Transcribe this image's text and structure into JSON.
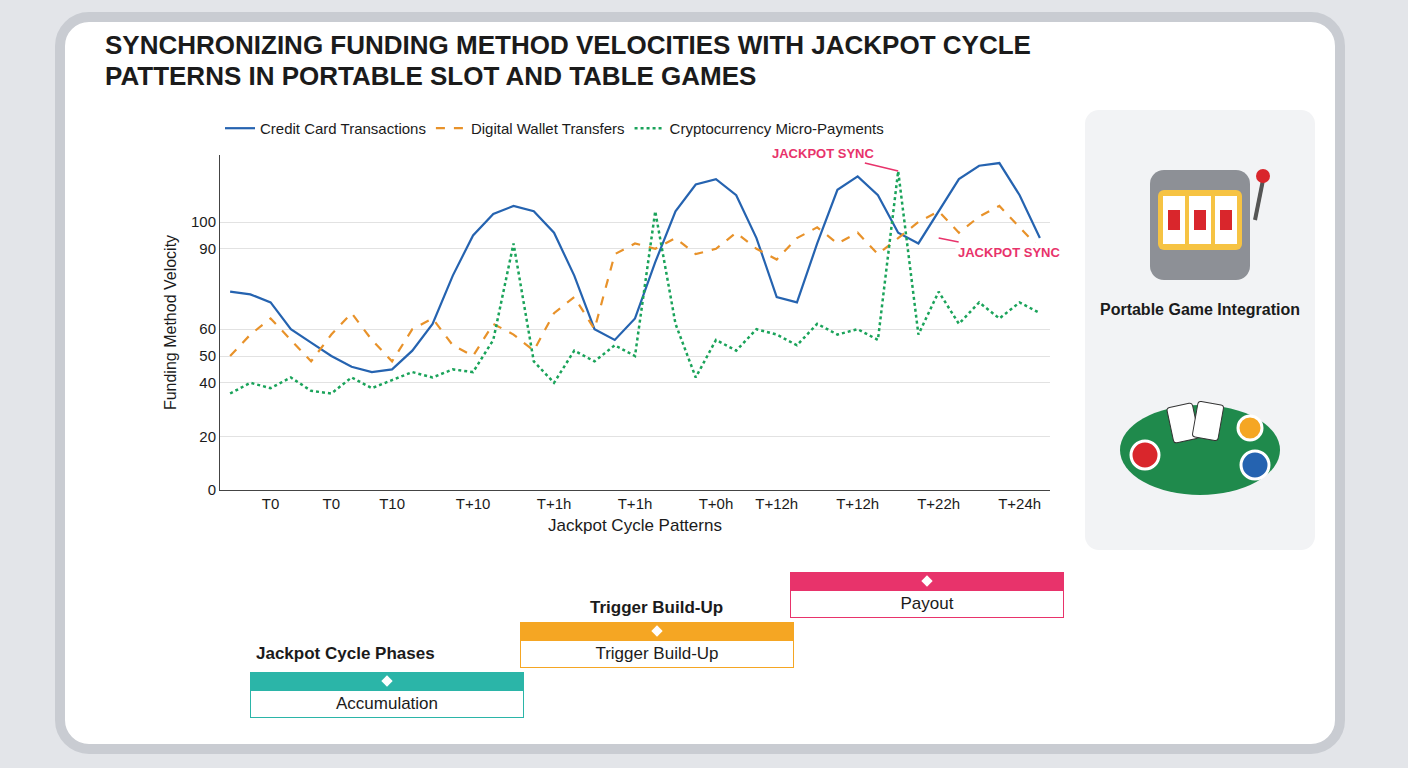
{
  "chart_data": {
    "type": "line",
    "title": "SYNCHRONIZING FUNDING METHOD VELOCITIES WITH JACKPOT CYCLE PATTERNS IN PORTABLE SLOT AND TABLE GAMES",
    "x_label": "Jackpot Cycle Patterns",
    "y_label": "Funding Method Velocity",
    "categories": [
      null,
      null,
      "T0",
      null,
      null,
      "T0",
      null,
      null,
      "T10",
      null,
      null,
      null,
      "T+10",
      null,
      null,
      null,
      "T+1h",
      null,
      null,
      null,
      "T+1h",
      null,
      null,
      null,
      "T+0h",
      null,
      null,
      "T+12h",
      null,
      null,
      null,
      "T+12h",
      null,
      null,
      null,
      "T+22h",
      null,
      null,
      null,
      "T+24h",
      null
    ],
    "series": [
      {
        "name": "Credit Card Transactions",
        "color": "#2563b0",
        "line_style": "solid",
        "values": [
          74,
          73,
          70,
          60,
          55,
          50,
          46,
          44,
          45,
          52,
          62,
          80,
          95,
          103,
          106,
          104,
          96,
          80,
          60,
          56,
          64,
          85,
          104,
          114,
          116,
          110,
          94,
          72,
          70,
          92,
          112,
          117,
          110,
          96,
          92,
          104,
          116,
          121,
          122,
          110,
          94
        ]
      },
      {
        "name": "Digital Wallet Transfers",
        "color": "#e8922a",
        "line_style": "dash",
        "values": [
          50,
          58,
          64,
          56,
          48,
          58,
          66,
          56,
          48,
          60,
          64,
          54,
          50,
          62,
          58,
          52,
          66,
          72,
          60,
          88,
          92,
          90,
          94,
          88,
          90,
          96,
          90,
          86,
          94,
          98,
          92,
          96,
          88,
          94,
          100,
          104,
          96,
          102,
          106,
          98,
          90
        ]
      },
      {
        "name": "Cryptocurrency Micro-Payments",
        "color": "#1aa35a",
        "line_style": "dot",
        "values": [
          36,
          40,
          38,
          42,
          37,
          36,
          42,
          38,
          41,
          44,
          42,
          45,
          44,
          56,
          92,
          48,
          40,
          52,
          48,
          54,
          50,
          104,
          62,
          42,
          56,
          52,
          60,
          58,
          54,
          62,
          58,
          60,
          56,
          119,
          58,
          74,
          62,
          70,
          64,
          70,
          66
        ]
      }
    ],
    "ylim": [
      0,
      125
    ],
    "yticks": [
      0,
      20,
      40,
      50,
      60,
      90,
      100
    ],
    "grid": true,
    "legend": "top",
    "annotations": [
      {
        "text": "JACKPOT SYNC",
        "x": 33,
        "y": 119,
        "color": "#e8336b"
      },
      {
        "text": "JACKPOT SYNC",
        "x": 35,
        "y": 94,
        "color": "#e8336b"
      }
    ]
  },
  "phases": {
    "title": "Jackpot Cycle Phases",
    "label_above": "Trigger Build-Up",
    "segments": [
      {
        "name": "Accumulation",
        "color": "#2bb5a8"
      },
      {
        "name": "Trigger Build-Up",
        "color": "#f5a623"
      },
      {
        "name": "Payout",
        "color": "#e8336b"
      }
    ]
  },
  "side_panel": {
    "title": "Portable Game Integration"
  }
}
